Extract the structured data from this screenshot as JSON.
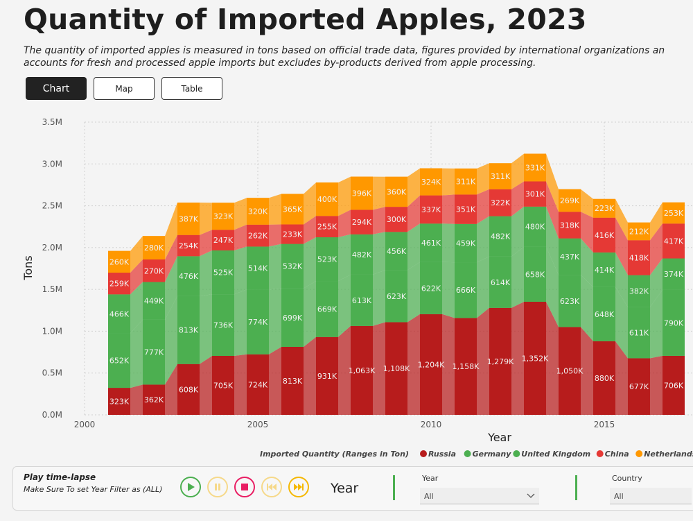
{
  "header": {
    "title": "Quantity of Imported Apples, 2023",
    "subtitle_line1": "The quantity of imported apples is measured in tons based on official trade data, figures provided by international organizations an",
    "subtitle_line2": "accounts for fresh and processed apple imports but excludes by-products derived from apple processing."
  },
  "tabs": [
    {
      "label": "Chart",
      "active": true
    },
    {
      "label": "Map",
      "active": false
    },
    {
      "label": "Table",
      "active": false
    }
  ],
  "chart_data": {
    "type": "area",
    "stacked": true,
    "xlabel": "Year",
    "ylabel": "Tons",
    "x": [
      2001,
      2002,
      2003,
      2004,
      2005,
      2006,
      2007,
      2008,
      2009,
      2010,
      2011,
      2012,
      2013,
      2014,
      2015,
      2016,
      2017
    ],
    "xlim": [
      2000,
      2017.5
    ],
    "ylim": [
      0,
      3500000
    ],
    "x_ticks": [
      "2000",
      "2005",
      "2010",
      "2015"
    ],
    "y_ticks": [
      "0.0M",
      "0.5M",
      "1.0M",
      "1.5M",
      "2.0M",
      "2.5M",
      "3.0M",
      "3.5M"
    ],
    "grid": true,
    "legend_title": "Imported Quantity (Ranges in Ton)",
    "legend_position": "bottom-right",
    "series": [
      {
        "name": "Russia",
        "color": "#b71c1c",
        "values": [
          323000,
          362000,
          608000,
          705000,
          724000,
          813000,
          931000,
          1063000,
          1108000,
          1204000,
          1158000,
          1279000,
          1352000,
          1050000,
          880000,
          677000,
          706000
        ],
        "labels": [
          "323K",
          "362K",
          "608K",
          "705K",
          "724K",
          "813K",
          "931K",
          "1,063K",
          "1,108K",
          "1,204K",
          "1,158K",
          "1,279K",
          "1,352K",
          "1,050K",
          "880K",
          "677K",
          "706K"
        ]
      },
      {
        "name": "Germany",
        "color": "#4caf50",
        "values": [
          652000,
          777000,
          813000,
          736000,
          774000,
          699000,
          669000,
          613000,
          623000,
          622000,
          666000,
          614000,
          658000,
          623000,
          648000,
          611000,
          790000
        ],
        "labels": [
          "652K",
          "777K",
          "813K",
          "736K",
          "774K",
          "699K",
          "669K",
          "613K",
          "623K",
          "622K",
          "666K",
          "614K",
          "658K",
          "623K",
          "648K",
          "611K",
          "790K"
        ]
      },
      {
        "name": "United Kingdom",
        "color": "#4caf50",
        "values": [
          466000,
          449000,
          476000,
          525000,
          514000,
          532000,
          523000,
          482000,
          456000,
          461000,
          459000,
          482000,
          480000,
          437000,
          414000,
          382000,
          374000
        ],
        "labels": [
          "466K",
          "449K",
          "476K",
          "525K",
          "514K",
          "532K",
          "523K",
          "482K",
          "456K",
          "461K",
          "459K",
          "482K",
          "480K",
          "437K",
          "414K",
          "382K",
          "374K"
        ]
      },
      {
        "name": "China",
        "color": "#e53935",
        "values": [
          259000,
          270000,
          254000,
          247000,
          262000,
          233000,
          255000,
          294000,
          300000,
          337000,
          351000,
          322000,
          301000,
          318000,
          416000,
          418000,
          417000
        ],
        "labels": [
          "259K",
          "270K",
          "254K",
          "247K",
          "262K",
          "233K",
          "255K",
          "294K",
          "300K",
          "337K",
          "351K",
          "322K",
          "301K",
          "318K",
          "416K",
          "418K",
          "417K"
        ]
      },
      {
        "name": "Netherlands",
        "color": "#ff9800",
        "values": [
          260000,
          280000,
          387000,
          323000,
          320000,
          365000,
          400000,
          396000,
          360000,
          324000,
          311000,
          311000,
          331000,
          269000,
          223000,
          212000,
          253000
        ],
        "labels": [
          "260K",
          "280K",
          "387K",
          "323K",
          "320K",
          "365K",
          "400K",
          "396K",
          "360K",
          "324K",
          "311K",
          "311K",
          "331K",
          "269K",
          "223K",
          "212K",
          "253K"
        ]
      }
    ]
  },
  "timelapse": {
    "title": "Play time-lapse",
    "note": "Make Sure To set Year Filter as (ALL)",
    "year_label": "Year",
    "controls": [
      "play-icon",
      "pause-icon",
      "stop-icon",
      "rewind-icon",
      "fast-forward-icon"
    ],
    "filters": [
      {
        "label": "Year",
        "value": "All"
      },
      {
        "label": "Country",
        "value": "All"
      }
    ]
  }
}
